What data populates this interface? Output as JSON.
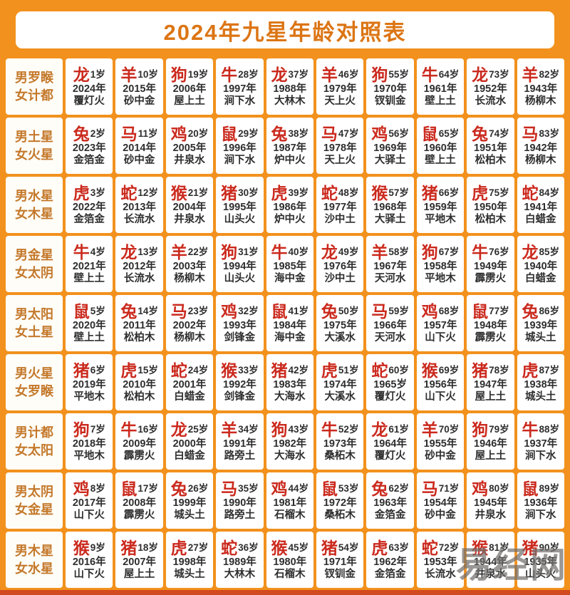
{
  "title": "2024年九星年龄对照表",
  "watermark": "易经网",
  "colors": {
    "background": "#F2911D",
    "bottom_edge": "#D2491F",
    "title": "#DC7514",
    "label": "#C4782A",
    "animal": "#CB2A1E",
    "text": "#2E2E2E"
  },
  "table": {
    "rows": [
      {
        "label_line1": "男罗睺",
        "label_line2": "女计都",
        "cells": [
          {
            "animal": "龙",
            "age": "1岁",
            "year": "2024年",
            "element": "覆灯火"
          },
          {
            "animal": "羊",
            "age": "10岁",
            "year": "2015年",
            "element": "砂中金"
          },
          {
            "animal": "狗",
            "age": "19岁",
            "year": "2006年",
            "element": "屋上土"
          },
          {
            "animal": "牛",
            "age": "28岁",
            "year": "1997年",
            "element": "涧下水"
          },
          {
            "animal": "龙",
            "age": "37岁",
            "year": "1988年",
            "element": "大林木"
          },
          {
            "animal": "羊",
            "age": "46岁",
            "year": "1979年",
            "element": "天上火"
          },
          {
            "animal": "狗",
            "age": "55岁",
            "year": "1970年",
            "element": "钗钏金"
          },
          {
            "animal": "牛",
            "age": "64岁",
            "year": "1961年",
            "element": "壁上土"
          },
          {
            "animal": "龙",
            "age": "73岁",
            "year": "1952年",
            "element": "长流水"
          },
          {
            "animal": "羊",
            "age": "82岁",
            "year": "1943年",
            "element": "杨柳木"
          }
        ]
      },
      {
        "label_line1": "男土星",
        "label_line2": "女火星",
        "cells": [
          {
            "animal": "兔",
            "age": "2岁",
            "year": "2023年",
            "element": "金箔金"
          },
          {
            "animal": "马",
            "age": "11岁",
            "year": "2014年",
            "element": "砂中金"
          },
          {
            "animal": "鸡",
            "age": "20岁",
            "year": "2005年",
            "element": "井泉水"
          },
          {
            "animal": "鼠",
            "age": "29岁",
            "year": "1996年",
            "element": "涧下水"
          },
          {
            "animal": "兔",
            "age": "38岁",
            "year": "1987年",
            "element": "炉中火"
          },
          {
            "animal": "马",
            "age": "47岁",
            "year": "1978年",
            "element": "天上火"
          },
          {
            "animal": "鸡",
            "age": "56岁",
            "year": "1969年",
            "element": "大驿土"
          },
          {
            "animal": "鼠",
            "age": "65岁",
            "year": "1960年",
            "element": "壁上土"
          },
          {
            "animal": "兔",
            "age": "74岁",
            "year": "1951年",
            "element": "松柏木"
          },
          {
            "animal": "马",
            "age": "83岁",
            "year": "1942年",
            "element": "杨柳木"
          }
        ]
      },
      {
        "label_line1": "男水星",
        "label_line2": "女木星",
        "cells": [
          {
            "animal": "虎",
            "age": "3岁",
            "year": "2022年",
            "element": "金箔金"
          },
          {
            "animal": "蛇",
            "age": "12岁",
            "year": "2013年",
            "element": "长流水"
          },
          {
            "animal": "猴",
            "age": "21岁",
            "year": "2004年",
            "element": "井泉水"
          },
          {
            "animal": "猪",
            "age": "30岁",
            "year": "1995年",
            "element": "山头火"
          },
          {
            "animal": "虎",
            "age": "39岁",
            "year": "1986年",
            "element": "炉中火"
          },
          {
            "animal": "蛇",
            "age": "48岁",
            "year": "1977年",
            "element": "沙中土"
          },
          {
            "animal": "猴",
            "age": "57岁",
            "year": "1968年",
            "element": "大驿土"
          },
          {
            "animal": "猪",
            "age": "66岁",
            "year": "1959年",
            "element": "平地木"
          },
          {
            "animal": "虎",
            "age": "75岁",
            "year": "1950年",
            "element": "松柏木"
          },
          {
            "animal": "蛇",
            "age": "84岁",
            "year": "1941年",
            "element": "白蜡金"
          }
        ]
      },
      {
        "label_line1": "男金星",
        "label_line2": "女太阴",
        "cells": [
          {
            "animal": "牛",
            "age": "4岁",
            "year": "2021年",
            "element": "壁上土"
          },
          {
            "animal": "龙",
            "age": "13岁",
            "year": "2012年",
            "element": "长流水"
          },
          {
            "animal": "羊",
            "age": "22岁",
            "year": "2003年",
            "element": "杨柳木"
          },
          {
            "animal": "狗",
            "age": "31岁",
            "year": "1994年",
            "element": "山头火"
          },
          {
            "animal": "牛",
            "age": "40岁",
            "year": "1985年",
            "element": "海中金"
          },
          {
            "animal": "龙",
            "age": "49岁",
            "year": "1976年",
            "element": "沙中土"
          },
          {
            "animal": "羊",
            "age": "58岁",
            "year": "1967年",
            "element": "天河水"
          },
          {
            "animal": "狗",
            "age": "67岁",
            "year": "1958年",
            "element": "平地木"
          },
          {
            "animal": "牛",
            "age": "76岁",
            "year": "1949年",
            "element": "霹雳火"
          },
          {
            "animal": "龙",
            "age": "85岁",
            "year": "1940年",
            "element": "白蜡金"
          }
        ]
      },
      {
        "label_line1": "男太阳",
        "label_line2": "女土星",
        "cells": [
          {
            "animal": "鼠",
            "age": "5岁",
            "year": "2020年",
            "element": "壁上土"
          },
          {
            "animal": "兔",
            "age": "14岁",
            "year": "2011年",
            "element": "松柏木"
          },
          {
            "animal": "马",
            "age": "23岁",
            "year": "2002年",
            "element": "杨柳木"
          },
          {
            "animal": "鸡",
            "age": "32岁",
            "year": "1993年",
            "element": "剑锋金"
          },
          {
            "animal": "鼠",
            "age": "41岁",
            "year": "1984年",
            "element": "海中金"
          },
          {
            "animal": "兔",
            "age": "50岁",
            "year": "1975年",
            "element": "大溪水"
          },
          {
            "animal": "马",
            "age": "59岁",
            "year": "1966年",
            "element": "天河水"
          },
          {
            "animal": "鸡",
            "age": "68岁",
            "year": "1957年",
            "element": "山下火"
          },
          {
            "animal": "鼠",
            "age": "77岁",
            "year": "1948年",
            "element": "霹雳火"
          },
          {
            "animal": "兔",
            "age": "86岁",
            "year": "1939年",
            "element": "城头土"
          }
        ]
      },
      {
        "label_line1": "男火星",
        "label_line2": "女罗睺",
        "cells": [
          {
            "animal": "猪",
            "age": "6岁",
            "year": "2019年",
            "element": "平地木"
          },
          {
            "animal": "虎",
            "age": "15岁",
            "year": "2010年",
            "element": "松柏木"
          },
          {
            "animal": "蛇",
            "age": "24岁",
            "year": "2001年",
            "element": "白蜡金"
          },
          {
            "animal": "猴",
            "age": "33岁",
            "year": "1992年",
            "element": "剑锋金"
          },
          {
            "animal": "猪",
            "age": "42岁",
            "year": "1983年",
            "element": "大海水"
          },
          {
            "animal": "虎",
            "age": "51岁",
            "year": "1974年",
            "element": "大溪水"
          },
          {
            "animal": "蛇",
            "age": "60岁",
            "year": "1965岁",
            "element": "覆灯火"
          },
          {
            "animal": "猴",
            "age": "69岁",
            "year": "1956年",
            "element": "山下火"
          },
          {
            "animal": "猪",
            "age": "78岁",
            "year": "1947年",
            "element": "屋上土"
          },
          {
            "animal": "虎",
            "age": "87岁",
            "year": "1938年",
            "element": "城头土"
          }
        ]
      },
      {
        "label_line1": "男计都",
        "label_line2": "女太阳",
        "cells": [
          {
            "animal": "狗",
            "age": "7岁",
            "year": "2018年",
            "element": "平地木"
          },
          {
            "animal": "牛",
            "age": "16岁",
            "year": "2009年",
            "element": "霹雳火"
          },
          {
            "animal": "龙",
            "age": "25岁",
            "year": "2000年",
            "element": "白蜡金"
          },
          {
            "animal": "羊",
            "age": "34岁",
            "year": "1991年",
            "element": "路旁土"
          },
          {
            "animal": "狗",
            "age": "43岁",
            "year": "1982年",
            "element": "大海水"
          },
          {
            "animal": "牛",
            "age": "52岁",
            "year": "1973年",
            "element": "桑柘木"
          },
          {
            "animal": "龙",
            "age": "61岁",
            "year": "1964年",
            "element": "覆灯火"
          },
          {
            "animal": "羊",
            "age": "70岁",
            "year": "1955年",
            "element": "砂中金"
          },
          {
            "animal": "狗",
            "age": "79岁",
            "year": "1946年",
            "element": "屋上土"
          },
          {
            "animal": "牛",
            "age": "88岁",
            "year": "1937年",
            "element": "涧下水"
          }
        ]
      },
      {
        "label_line1": "男太阴",
        "label_line2": "女金星",
        "cells": [
          {
            "animal": "鸡",
            "age": "8岁",
            "year": "2017年",
            "element": "山下火"
          },
          {
            "animal": "鼠",
            "age": "17岁",
            "year": "2008年",
            "element": "霹雳火"
          },
          {
            "animal": "兔",
            "age": "26岁",
            "year": "1999年",
            "element": "城头土"
          },
          {
            "animal": "马",
            "age": "35岁",
            "year": "1990年",
            "element": "路旁土"
          },
          {
            "animal": "鸡",
            "age": "44岁",
            "year": "1981年",
            "element": "石榴木"
          },
          {
            "animal": "鼠",
            "age": "53岁",
            "year": "1972年",
            "element": "桑柘木"
          },
          {
            "animal": "兔",
            "age": "62岁",
            "year": "1963年",
            "element": "金箔金"
          },
          {
            "animal": "马",
            "age": "71岁",
            "year": "1954年",
            "element": "砂中金"
          },
          {
            "animal": "鸡",
            "age": "80岁",
            "year": "1945年",
            "element": "井泉水"
          },
          {
            "animal": "鼠",
            "age": "89岁",
            "year": "1936年",
            "element": "涧下水"
          }
        ]
      },
      {
        "label_line1": "男木星",
        "label_line2": "女水星",
        "cells": [
          {
            "animal": "猴",
            "age": "9岁",
            "year": "2016年",
            "element": "山下火"
          },
          {
            "animal": "猪",
            "age": "18岁",
            "year": "2007年",
            "element": "屋上土"
          },
          {
            "animal": "虎",
            "age": "27岁",
            "year": "1998年",
            "element": "城头土"
          },
          {
            "animal": "蛇",
            "age": "36岁",
            "year": "1989年",
            "element": "大林木"
          },
          {
            "animal": "猴",
            "age": "45岁",
            "year": "1980年",
            "element": "石榴木"
          },
          {
            "animal": "猪",
            "age": "54岁",
            "year": "1971年",
            "element": "钗钏金"
          },
          {
            "animal": "虎",
            "age": "63岁",
            "year": "1962年",
            "element": "金箔金"
          },
          {
            "animal": "蛇",
            "age": "72岁",
            "year": "1953年",
            "element": "长流水"
          },
          {
            "animal": "猴",
            "age": "81岁",
            "year": "1944年",
            "element": "井泉水"
          },
          {
            "animal": "猪",
            "age": "90岁",
            "year": "1935年",
            "element": "山头火"
          }
        ]
      }
    ]
  }
}
